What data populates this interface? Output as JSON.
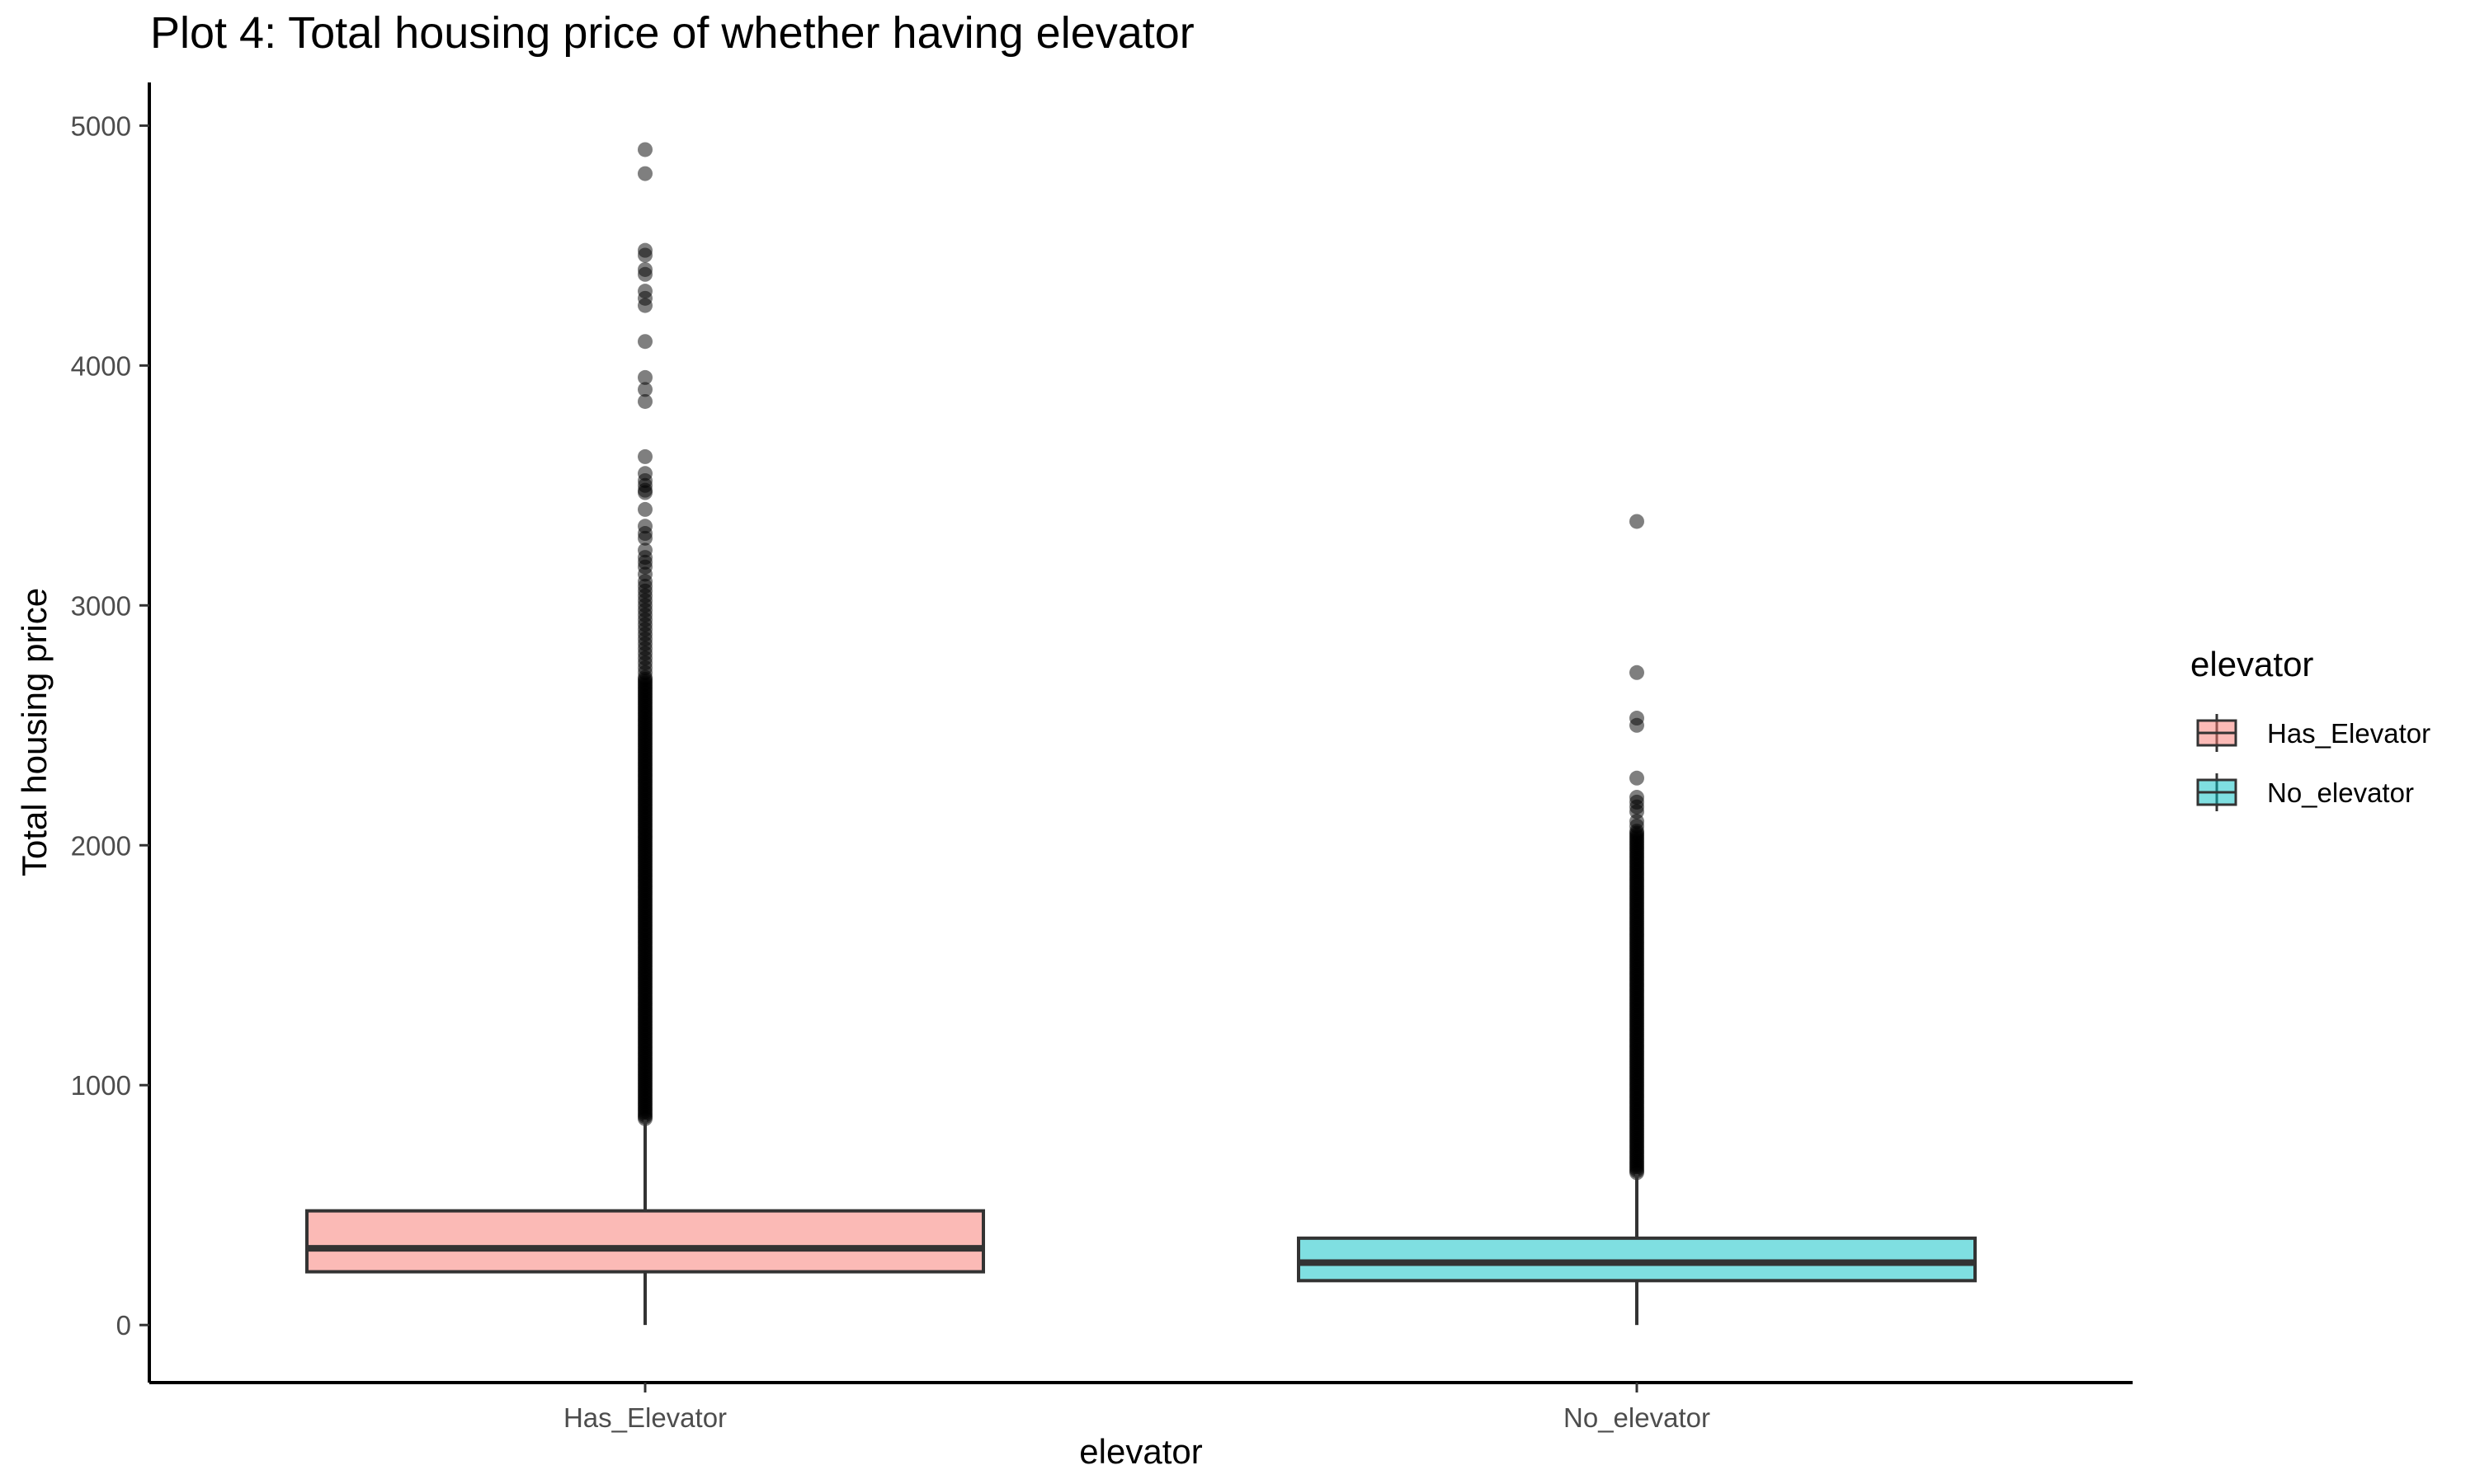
{
  "chart_data": {
    "type": "boxplot",
    "title": "Plot 4: Total housing price of whether having elevator",
    "xlabel": "elevator",
    "ylabel": "Total housing price",
    "ylim": [
      -240,
      5180
    ],
    "yticks": [
      0,
      1000,
      2000,
      3000,
      4000,
      5000
    ],
    "ytick_labels": [
      "0",
      "1000",
      "2000",
      "3000",
      "4000",
      "5000"
    ],
    "categories": [
      "Has_Elevator",
      "No_elevator"
    ],
    "grid": false,
    "legend": {
      "title": "elevator",
      "position": "right",
      "entries": [
        "Has_Elevator",
        "No_elevator"
      ]
    },
    "series": [
      {
        "name": "Has_Elevator",
        "color": "#F8766D",
        "stats": {
          "min": 0,
          "q1": 222,
          "median": 320,
          "q3": 476,
          "whisker_high": 856
        },
        "outlier_band": [
          860,
          2700
        ],
        "outliers": [
          4900,
          4800,
          4480,
          4460,
          4400,
          4380,
          4310,
          4280,
          4250,
          4100,
          3950,
          3900,
          3850,
          3620,
          3550,
          3520,
          3500,
          3480,
          3470,
          3400,
          3330,
          3300,
          3280,
          3230,
          3200,
          3180,
          3160,
          3130,
          3100,
          3080,
          3060,
          3040,
          3020,
          3000,
          2980,
          2960,
          2940,
          2920,
          2900,
          2880,
          2860,
          2840,
          2820,
          2800,
          2780,
          2760,
          2740,
          2720
        ]
      },
      {
        "name": "No_elevator",
        "color": "#00BFC4",
        "stats": {
          "min": 0,
          "q1": 185,
          "median": 260,
          "q3": 362,
          "whisker_high": 630
        },
        "outlier_band": [
          635,
          2060
        ],
        "outliers": [
          3350,
          2720,
          2530,
          2500,
          2280,
          2200,
          2180,
          2160,
          2140,
          2100,
          2080
        ]
      }
    ]
  }
}
